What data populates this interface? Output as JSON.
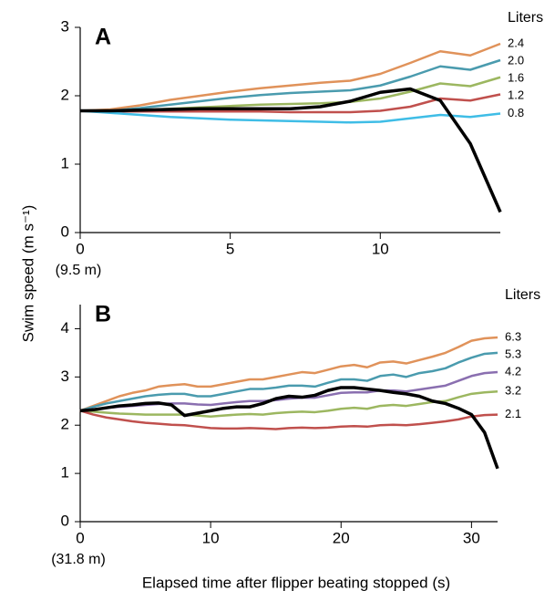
{
  "chart_data": [
    {
      "type": "line",
      "panel_label": "A",
      "ylabel": "Swim speed (m s⁻¹)",
      "legend_title": "Liters",
      "x_note": "(9.5 m)",
      "x": [
        0,
        1,
        2,
        3,
        4,
        5,
        6,
        7,
        8,
        9,
        10,
        11,
        12,
        13,
        14
      ],
      "xlim": [
        0,
        14
      ],
      "xticks": [
        0,
        5,
        10
      ],
      "ylim": [
        0,
        3
      ],
      "yticks": [
        0,
        1,
        2,
        3
      ],
      "series": [
        {
          "name": "2.4",
          "color": "#e0925a",
          "values": [
            1.78,
            1.8,
            1.86,
            1.94,
            2.0,
            2.06,
            2.11,
            2.15,
            2.19,
            2.22,
            2.32,
            2.48,
            2.65,
            2.59,
            2.76
          ]
        },
        {
          "name": "2.0",
          "color": "#4a9bae",
          "values": [
            1.78,
            1.78,
            1.82,
            1.87,
            1.92,
            1.97,
            2.01,
            2.04,
            2.06,
            2.08,
            2.15,
            2.28,
            2.43,
            2.38,
            2.52
          ]
        },
        {
          "name": "1.6",
          "color": "#9cb760",
          "values": [
            1.78,
            1.78,
            1.79,
            1.81,
            1.83,
            1.85,
            1.87,
            1.88,
            1.89,
            1.91,
            1.96,
            2.06,
            2.18,
            2.14,
            2.27
          ]
        },
        {
          "name": "1.2",
          "color": "#c0504d",
          "values": [
            1.78,
            1.77,
            1.77,
            1.77,
            1.77,
            1.77,
            1.77,
            1.76,
            1.76,
            1.76,
            1.78,
            1.84,
            1.96,
            1.93,
            2.02
          ]
        },
        {
          "name": "0.8",
          "color": "#3fbde6",
          "values": [
            1.78,
            1.75,
            1.72,
            1.69,
            1.67,
            1.65,
            1.64,
            1.63,
            1.62,
            1.61,
            1.62,
            1.67,
            1.72,
            1.69,
            1.74
          ]
        },
        {
          "color": "#000000",
          "values": [
            1.78,
            1.78,
            1.79,
            1.8,
            1.81,
            1.81,
            1.81,
            1.81,
            1.84,
            1.92,
            2.05,
            2.1,
            1.93,
            1.3,
            0.3
          ]
        }
      ]
    },
    {
      "type": "line",
      "panel_label": "B",
      "xlabel": "Elapsed time after flipper beating stopped (s)",
      "legend_title": "Liters",
      "x_note": "(31.8 m)",
      "x": [
        0,
        1,
        2,
        3,
        4,
        5,
        6,
        7,
        8,
        9,
        10,
        11,
        12,
        13,
        14,
        15,
        16,
        17,
        18,
        19,
        20,
        21,
        22,
        23,
        24,
        25,
        26,
        27,
        28,
        29,
        30,
        31,
        32
      ],
      "xlim": [
        0,
        32
      ],
      "xticks": [
        0,
        10,
        20,
        30
      ],
      "ylim": [
        0,
        4.5
      ],
      "yticks": [
        0,
        1,
        2,
        3,
        4
      ],
      "series": [
        {
          "name": "6.3",
          "color": "#e0925a",
          "values": [
            2.3,
            2.4,
            2.5,
            2.6,
            2.67,
            2.72,
            2.8,
            2.83,
            2.85,
            2.8,
            2.8,
            2.85,
            2.9,
            2.95,
            2.95,
            3.0,
            3.05,
            3.1,
            3.08,
            3.15,
            3.22,
            3.25,
            3.2,
            3.3,
            3.32,
            3.28,
            3.35,
            3.42,
            3.5,
            3.62,
            3.75,
            3.8,
            3.82
          ]
        },
        {
          "name": "5.3",
          "color": "#4a9bae",
          "values": [
            2.3,
            2.38,
            2.45,
            2.5,
            2.55,
            2.6,
            2.63,
            2.65,
            2.65,
            2.6,
            2.6,
            2.65,
            2.7,
            2.75,
            2.75,
            2.78,
            2.82,
            2.82,
            2.8,
            2.88,
            2.95,
            2.95,
            2.92,
            3.02,
            3.05,
            3.0,
            3.08,
            3.12,
            3.18,
            3.3,
            3.4,
            3.48,
            3.5
          ]
        },
        {
          "name": "4.2",
          "color": "#8a6fb0",
          "values": [
            2.3,
            2.33,
            2.36,
            2.38,
            2.4,
            2.42,
            2.44,
            2.45,
            2.45,
            2.43,
            2.42,
            2.45,
            2.48,
            2.5,
            2.5,
            2.52,
            2.55,
            2.57,
            2.57,
            2.62,
            2.67,
            2.68,
            2.68,
            2.72,
            2.72,
            2.7,
            2.74,
            2.78,
            2.82,
            2.92,
            3.02,
            3.08,
            3.1
          ]
        },
        {
          "name": "3.2",
          "color": "#9cb760",
          "values": [
            2.3,
            2.28,
            2.26,
            2.24,
            2.23,
            2.22,
            2.22,
            2.22,
            2.22,
            2.2,
            2.18,
            2.2,
            2.22,
            2.23,
            2.22,
            2.25,
            2.27,
            2.28,
            2.27,
            2.3,
            2.34,
            2.36,
            2.34,
            2.4,
            2.42,
            2.4,
            2.44,
            2.48,
            2.5,
            2.58,
            2.65,
            2.68,
            2.7
          ]
        },
        {
          "name": "2.1",
          "color": "#c0504d",
          "values": [
            2.3,
            2.22,
            2.16,
            2.12,
            2.08,
            2.05,
            2.03,
            2.01,
            2.0,
            1.97,
            1.94,
            1.93,
            1.93,
            1.94,
            1.93,
            1.92,
            1.94,
            1.95,
            1.94,
            1.95,
            1.97,
            1.98,
            1.97,
            2.0,
            2.01,
            2.0,
            2.02,
            2.05,
            2.08,
            2.12,
            2.18,
            2.21,
            2.22
          ]
        },
        {
          "color": "#000000",
          "values": [
            2.3,
            2.32,
            2.36,
            2.4,
            2.42,
            2.45,
            2.46,
            2.42,
            2.2,
            2.25,
            2.3,
            2.35,
            2.38,
            2.38,
            2.45,
            2.55,
            2.6,
            2.58,
            2.62,
            2.72,
            2.78,
            2.78,
            2.75,
            2.72,
            2.68,
            2.65,
            2.6,
            2.5,
            2.45,
            2.35,
            2.22,
            1.85,
            1.1
          ]
        }
      ]
    }
  ]
}
